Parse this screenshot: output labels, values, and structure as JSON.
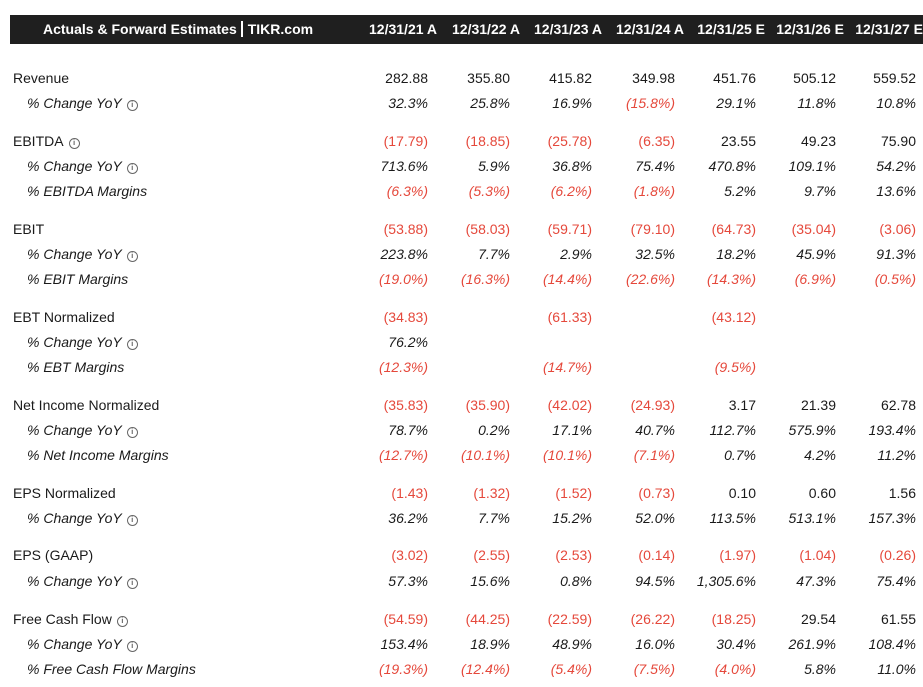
{
  "header": {
    "title": "Actuals & Forward Estimates",
    "brand": "TIKR.com",
    "columns": [
      "12/31/21 A",
      "12/31/22 A",
      "12/31/23 A",
      "12/31/24 A",
      "12/31/25 E",
      "12/31/26 E",
      "12/31/27 E"
    ]
  },
  "rows": [
    {
      "label": "Revenue",
      "type": "main",
      "info": false,
      "values": [
        "282.88",
        "355.80",
        "415.82",
        "349.98",
        "451.76",
        "505.12",
        "559.52"
      ]
    },
    {
      "label": "% Change YoY",
      "type": "sub",
      "info": true,
      "values": [
        "32.3%",
        "25.8%",
        "16.9%",
        "(15.8%)",
        "29.1%",
        "11.8%",
        "10.8%"
      ]
    },
    {
      "label": "EBITDA",
      "type": "main",
      "info": true,
      "values": [
        "(17.79)",
        "(18.85)",
        "(25.78)",
        "(6.35)",
        "23.55",
        "49.23",
        "75.90"
      ]
    },
    {
      "label": "% Change YoY",
      "type": "sub",
      "info": true,
      "values": [
        "713.6%",
        "5.9%",
        "36.8%",
        "75.4%",
        "470.8%",
        "109.1%",
        "54.2%"
      ]
    },
    {
      "label": "% EBITDA Margins",
      "type": "sub",
      "info": false,
      "values": [
        "(6.3%)",
        "(5.3%)",
        "(6.2%)",
        "(1.8%)",
        "5.2%",
        "9.7%",
        "13.6%"
      ]
    },
    {
      "label": "EBIT",
      "type": "main",
      "info": false,
      "values": [
        "(53.88)",
        "(58.03)",
        "(59.71)",
        "(79.10)",
        "(64.73)",
        "(35.04)",
        "(3.06)"
      ]
    },
    {
      "label": "% Change YoY",
      "type": "sub",
      "info": true,
      "values": [
        "223.8%",
        "7.7%",
        "2.9%",
        "32.5%",
        "18.2%",
        "45.9%",
        "91.3%"
      ]
    },
    {
      "label": "% EBIT Margins",
      "type": "sub",
      "info": false,
      "values": [
        "(19.0%)",
        "(16.3%)",
        "(14.4%)",
        "(22.6%)",
        "(14.3%)",
        "(6.9%)",
        "(0.5%)"
      ]
    },
    {
      "label": "EBT Normalized",
      "type": "main",
      "info": false,
      "values": [
        "(34.83)",
        "",
        "(61.33)",
        "",
        "(43.12)",
        "",
        ""
      ]
    },
    {
      "label": "% Change YoY",
      "type": "sub",
      "info": true,
      "values": [
        "76.2%",
        "",
        "",
        "",
        "",
        "",
        ""
      ]
    },
    {
      "label": "% EBT Margins",
      "type": "sub",
      "info": false,
      "values": [
        "(12.3%)",
        "",
        "(14.7%)",
        "",
        "(9.5%)",
        "",
        ""
      ]
    },
    {
      "label": "Net Income Normalized",
      "type": "main",
      "info": false,
      "values": [
        "(35.83)",
        "(35.90)",
        "(42.02)",
        "(24.93)",
        "3.17",
        "21.39",
        "62.78"
      ]
    },
    {
      "label": "% Change YoY",
      "type": "sub",
      "info": true,
      "values": [
        "78.7%",
        "0.2%",
        "17.1%",
        "40.7%",
        "112.7%",
        "575.9%",
        "193.4%"
      ]
    },
    {
      "label": "% Net Income Margins",
      "type": "sub",
      "info": false,
      "values": [
        "(12.7%)",
        "(10.1%)",
        "(10.1%)",
        "(7.1%)",
        "0.7%",
        "4.2%",
        "11.2%"
      ]
    },
    {
      "label": "EPS Normalized",
      "type": "main",
      "info": false,
      "values": [
        "(1.43)",
        "(1.32)",
        "(1.52)",
        "(0.73)",
        "0.10",
        "0.60",
        "1.56"
      ]
    },
    {
      "label": "% Change YoY",
      "type": "sub",
      "info": true,
      "values": [
        "36.2%",
        "7.7%",
        "15.2%",
        "52.0%",
        "113.5%",
        "513.1%",
        "157.3%"
      ]
    },
    {
      "label": "EPS (GAAP)",
      "type": "main",
      "info": false,
      "values": [
        "(3.02)",
        "(2.55)",
        "(2.53)",
        "(0.14)",
        "(1.97)",
        "(1.04)",
        "(0.26)"
      ]
    },
    {
      "label": "% Change YoY",
      "type": "sub",
      "info": true,
      "values": [
        "57.3%",
        "15.6%",
        "0.8%",
        "94.5%",
        "1,305.6%",
        "47.3%",
        "75.4%"
      ]
    },
    {
      "label": "Free Cash Flow",
      "type": "main",
      "info": true,
      "values": [
        "(54.59)",
        "(44.25)",
        "(22.59)",
        "(26.22)",
        "(18.25)",
        "29.54",
        "61.55"
      ]
    },
    {
      "label": "% Change YoY",
      "type": "sub",
      "info": true,
      "values": [
        "153.4%",
        "18.9%",
        "48.9%",
        "16.0%",
        "30.4%",
        "261.9%",
        "108.4%"
      ]
    },
    {
      "label": "% Free Cash Flow Margins",
      "type": "sub",
      "info": false,
      "values": [
        "(19.3%)",
        "(12.4%)",
        "(5.4%)",
        "(7.5%)",
        "(4.0%)",
        "5.8%",
        "11.0%"
      ]
    }
  ]
}
